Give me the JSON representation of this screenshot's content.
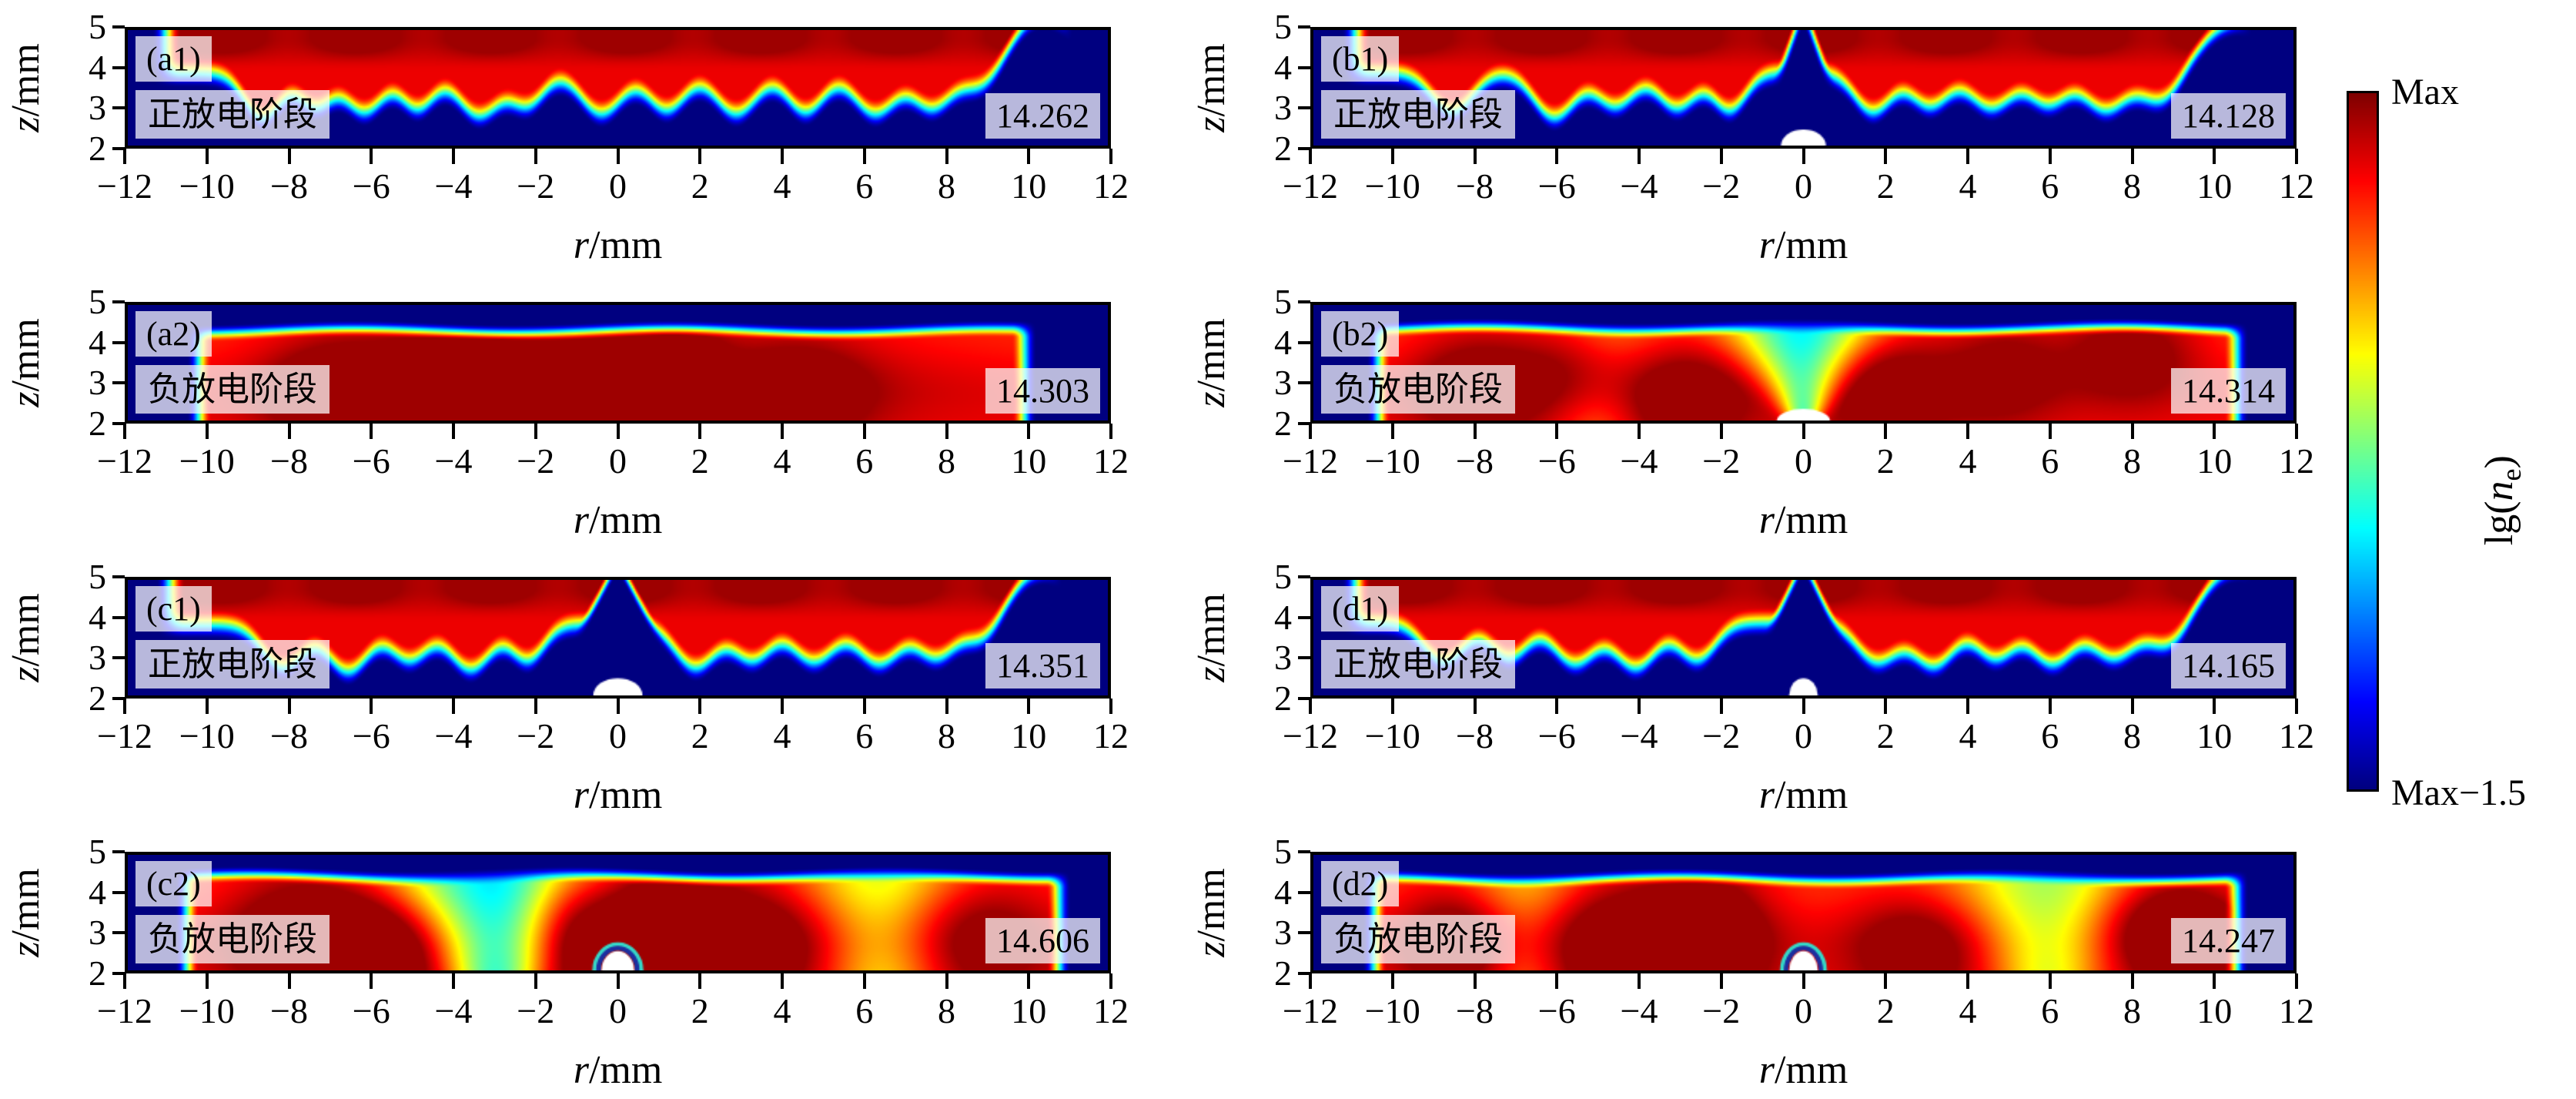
{
  "figure": {
    "axes": {
      "x_var": "r",
      "x_unit": "/mm",
      "y_var": "z",
      "y_unit": "/mm",
      "x_ticks": [
        "−12",
        "−10",
        "−8",
        "−6",
        "−4",
        "−2",
        "0",
        "2",
        "4",
        "6",
        "8",
        "10",
        "12"
      ],
      "y_ticks": [
        "5",
        "4",
        "3",
        "2"
      ]
    },
    "colorbar": {
      "top": "Max",
      "bottom": "Max−1.5",
      "prefix": "lg(",
      "var": "n",
      "sub": "e",
      "suffix": ")"
    }
  },
  "chart_data": {
    "type": "heatmap",
    "description": "Eight 2D electron-density (lg ne) distributions in r-z plane during positive/negative discharge stages; color scale spans Max to Max−1.5 (jet colormap). Number in each panel is the peak lg(ne).",
    "x_range": [
      -12,
      12
    ],
    "z_range": [
      2,
      5
    ],
    "colorbar": {
      "max_label": "Max",
      "min_label": "Max−1.5",
      "quantity": "lg(n_e)",
      "span_decades": 1.5
    },
    "panels": [
      {
        "id": "a1",
        "corner": "(a1)",
        "stage": "正放电阶段",
        "stage_en": "positive discharge stage",
        "value": "14.262",
        "row": 0,
        "col": 0,
        "render": {
          "kind": "pos",
          "base": 3.5,
          "trans": 0.8,
          "ew": 0.7,
          "edges": [
            -11.4,
            11.15
          ],
          "plumes": [
            [
              -8.7,
              1.15,
              0.45
            ],
            [
              -7.4,
              0.85,
              0.4
            ],
            [
              -6.2,
              1.0,
              0.45
            ],
            [
              -4.9,
              0.9,
              0.4
            ],
            [
              -3.4,
              1.1,
              0.5
            ],
            [
              -2.2,
              0.8,
              0.4
            ],
            [
              -0.4,
              1.05,
              0.5
            ],
            [
              1.2,
              0.95,
              0.45
            ],
            [
              2.9,
              1.05,
              0.5
            ],
            [
              4.6,
              1.0,
              0.45
            ],
            [
              6.3,
              1.05,
              0.5
            ],
            [
              7.7,
              0.9,
              0.45
            ],
            [
              9.0,
              0.7,
              0.5
            ]
          ],
          "rises": [
            [
              10.4,
              1.5,
              0.9
            ]
          ]
        }
      },
      {
        "id": "b1",
        "corner": "(b1)",
        "stage": "正放电阶段",
        "stage_en": "positive discharge stage",
        "value": "14.128",
        "row": 0,
        "col": 1,
        "render": {
          "kind": "pos",
          "base": 3.5,
          "trans": 0.8,
          "ew": 0.7,
          "edges": [
            -11.3,
            11.0
          ],
          "plumes": [
            [
              -8.6,
              1.0,
              0.5
            ],
            [
              -6.1,
              1.15,
              0.5
            ],
            [
              -4.6,
              0.85,
              0.45
            ],
            [
              -3.1,
              0.9,
              0.45
            ],
            [
              -1.8,
              0.95,
              0.4
            ],
            [
              1.7,
              1.0,
              0.45
            ],
            [
              3.1,
              0.85,
              0.45
            ],
            [
              4.6,
              0.9,
              0.5
            ],
            [
              6.0,
              0.8,
              0.45
            ],
            [
              7.4,
              0.95,
              0.5
            ],
            [
              8.8,
              0.85,
              0.5
            ]
          ],
          "rises": [
            [
              10.6,
              1.3,
              0.9
            ]
          ],
          "notch": [
            0.05,
            0.33
          ],
          "bump": {
            "rx": 0.55,
            "ry": 0.42,
            "ring": false
          }
        }
      },
      {
        "id": "a2",
        "corner": "(a2)",
        "stage": "负放电阶段",
        "stage_en": "negative discharge stage",
        "value": "14.303",
        "row": 1,
        "col": 0,
        "render": {
          "kind": "neg",
          "ztop": 4.55,
          "trans": 0.45,
          "ew": 0.6,
          "edges": [
            -10.55,
            10.25
          ],
          "phase": 0.5,
          "blobs": [
            [
              -7,
              2.8,
              0.18,
              1.2,
              1.0
            ],
            [
              -3.5,
              3.0,
              0.22,
              1.5,
              1.2
            ],
            [
              0,
              2.6,
              0.2,
              1.0,
              1.0
            ],
            [
              1.5,
              3.4,
              0.15,
              0.8,
              1.0
            ],
            [
              4.5,
              2.7,
              0.15,
              1.2,
              1.0
            ],
            [
              0,
              3.4,
              0.1,
              6.0,
              1.2
            ]
          ],
          "cools": []
        }
      },
      {
        "id": "b2",
        "corner": "(b2)",
        "stage": "负放电阶段",
        "stage_en": "negative discharge stage",
        "value": "14.314",
        "row": 1,
        "col": 1,
        "render": {
          "kind": "neg",
          "ztop": 4.6,
          "trans": 0.45,
          "ew": 0.6,
          "edges": [
            -10.7,
            10.9
          ],
          "phase": 1.7,
          "blobs": [
            [
              -8,
              3.0,
              0.2,
              1.2,
              1.0
            ],
            [
              -5.5,
              3.5,
              0.18,
              1.0,
              1.0
            ],
            [
              -3,
              2.6,
              0.2,
              1.2,
              1.0
            ],
            [
              2,
              3.0,
              0.18,
              1.5,
              1.0
            ],
            [
              5,
              3.4,
              0.15,
              1.0,
              1.0
            ],
            [
              8,
              3.8,
              0.2,
              1.2,
              0.9
            ]
          ],
          "cools": [
            [
              0,
              0.5,
              0.25,
              0.4
            ],
            [
              -5,
              0.15,
              0.8,
              0.1
            ]
          ],
          "bump": {
            "rx": 0.65,
            "ry": 0.3,
            "ring": false
          }
        }
      },
      {
        "id": "c1",
        "corner": "(c1)",
        "stage": "正放电阶段",
        "stage_en": "positive discharge stage",
        "value": "14.351",
        "row": 2,
        "col": 0,
        "render": {
          "kind": "pos",
          "base": 3.45,
          "trans": 0.8,
          "ew": 0.7,
          "edges": [
            -11.3,
            10.9
          ],
          "plumes": [
            [
              -8.2,
              1.1,
              0.5
            ],
            [
              -6.6,
              1.2,
              0.5
            ],
            [
              -5.1,
              0.9,
              0.45
            ],
            [
              -3.6,
              1.15,
              0.5
            ],
            [
              -2.2,
              0.9,
              0.4
            ],
            [
              1.9,
              1.1,
              0.5
            ],
            [
              3.3,
              0.9,
              0.45
            ],
            [
              4.8,
              0.95,
              0.5
            ],
            [
              6.4,
              1.0,
              0.5
            ],
            [
              7.8,
              0.85,
              0.45
            ],
            [
              9.0,
              0.7,
              0.45
            ]
          ],
          "rises": [
            [
              10.4,
              1.4,
              0.9
            ]
          ],
          "notch": [
            0.1,
            0.5
          ],
          "bump": {
            "rx": 0.6,
            "ry": 0.45,
            "ring": false
          }
        }
      },
      {
        "id": "d1",
        "corner": "(d1)",
        "stage": "正放电阶段",
        "stage_en": "positive discharge stage",
        "value": "14.165",
        "row": 2,
        "col": 1,
        "render": {
          "kind": "pos",
          "base": 3.5,
          "trans": 0.8,
          "ew": 0.7,
          "edges": [
            -11.3,
            11.0
          ],
          "plumes": [
            [
              -8.8,
              1.0,
              0.5
            ],
            [
              -7.2,
              0.9,
              0.45
            ],
            [
              -5.6,
              1.05,
              0.5
            ],
            [
              -4.1,
              1.15,
              0.5
            ],
            [
              -2.6,
              0.95,
              0.45
            ],
            [
              1.8,
              1.0,
              0.5
            ],
            [
              3.2,
              1.1,
              0.5
            ],
            [
              4.7,
              0.9,
              0.45
            ],
            [
              6.1,
              1.05,
              0.5
            ],
            [
              7.6,
              0.9,
              0.5
            ],
            [
              9.0,
              0.8,
              0.5
            ]
          ],
          "rises": [
            [
              10.6,
              1.4,
              0.9
            ]
          ],
          "notch": [
            0.08,
            0.45
          ],
          "bump": {
            "rx": 0.35,
            "ry": 0.45,
            "ring": false
          }
        }
      },
      {
        "id": "c2",
        "corner": "(c2)",
        "stage": "负放电阶段",
        "stage_en": "negative discharge stage",
        "value": "14.606",
        "row": 3,
        "col": 0,
        "render": {
          "kind": "neg",
          "ztop": 4.65,
          "trans": 0.45,
          "ew": 0.6,
          "edges": [
            -10.85,
            11.1
          ],
          "phase": 2.6,
          "blobs": [
            [
              -7.5,
              3.0,
              0.25,
              1.5,
              1.2
            ],
            [
              -5.5,
              2.5,
              0.2,
              1.2,
              1.0
            ],
            [
              0.8,
              3.0,
              0.28,
              1.2,
              1.5
            ],
            [
              -1.3,
              3.2,
              0.22,
              0.8,
              1.2
            ],
            [
              3.5,
              2.8,
              0.22,
              1.5,
              1.2
            ],
            [
              8.5,
              3.0,
              0.2,
              1.5,
              1.2
            ]
          ],
          "cools": [
            [
              -3,
              0.5,
              0.9,
              0.35
            ],
            [
              6.5,
              0.28,
              1.1,
              0.15
            ]
          ],
          "bump": {
            "rx": 0.4,
            "ry": 0.5,
            "ring": true
          }
        }
      },
      {
        "id": "d2",
        "corner": "(d2)",
        "stage": "负放电阶段",
        "stage_en": "negative discharge stage",
        "value": "14.247",
        "row": 3,
        "col": 1,
        "render": {
          "kind": "neg",
          "ztop": 4.6,
          "trans": 0.45,
          "ew": 0.6,
          "edges": [
            -10.8,
            10.9
          ],
          "phase": 4.1,
          "blobs": [
            [
              -8.5,
              2.8,
              0.2,
              1.0,
              1.0
            ],
            [
              -4.5,
              2.7,
              0.25,
              1.8,
              1.2
            ],
            [
              -2.3,
              3.0,
              0.22,
              1.0,
              1.2
            ],
            [
              2.8,
              2.6,
              0.18,
              1.2,
              1.0
            ],
            [
              8.8,
              3.2,
              0.25,
              1.2,
              1.0
            ],
            [
              9.8,
              2.4,
              0.2,
              0.8,
              0.8
            ]
          ],
          "cools": [
            [
              6,
              0.3,
              1.0,
              0.25
            ],
            [
              -6.8,
              0.18,
              0.8,
              0.1
            ]
          ],
          "bump": {
            "rx": 0.35,
            "ry": 0.5,
            "ring": true
          }
        }
      }
    ]
  }
}
